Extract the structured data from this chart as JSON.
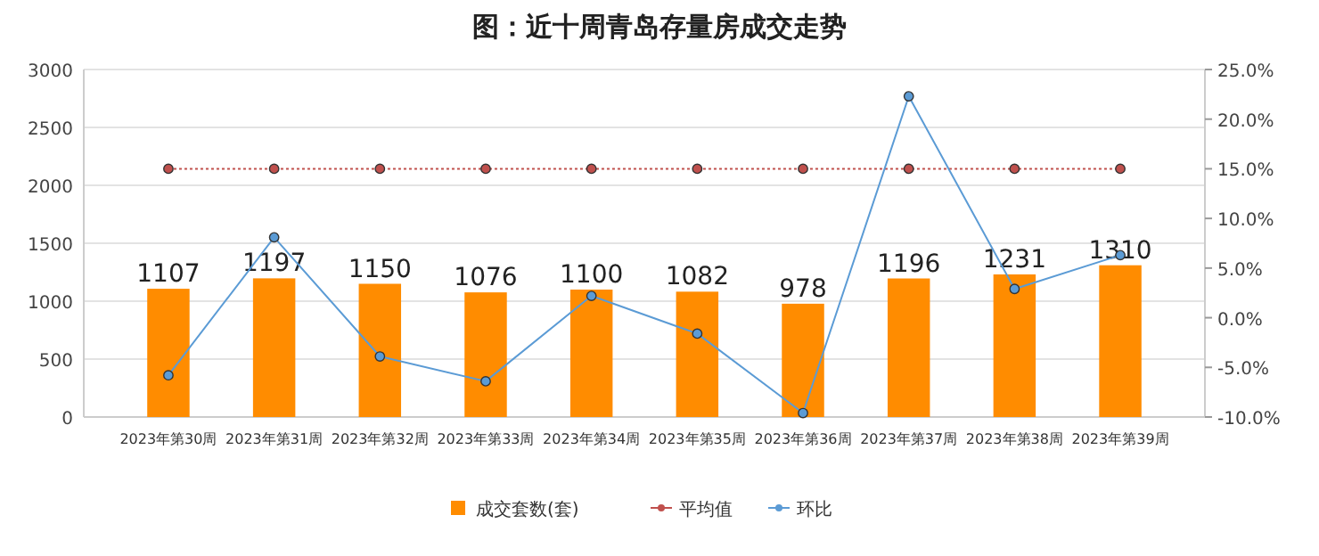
{
  "chart_data": {
    "type": "bar",
    "title": "图：近十周青岛存量房成交走势",
    "categories": [
      "2023年第30周",
      "2023年第31周",
      "2023年第32周",
      "2023年第33周",
      "2023年第34周",
      "2023年第35周",
      "2023年第36周",
      "2023年第37周",
      "2023年第38周",
      "2023年第39周"
    ],
    "series": [
      {
        "name": "成交套数(套)",
        "color": "#ff8c00",
        "values": [
          1107,
          1197,
          1150,
          1076,
          1100,
          1082,
          978,
          1196,
          1231,
          1310
        ],
        "data_labels": true
      },
      {
        "name": "平均值",
        "type": "line",
        "axis": "y2",
        "color": "#c0504d",
        "line_style": "dotted",
        "values": [
          15,
          15,
          15,
          15,
          15,
          15,
          15,
          15,
          15,
          15
        ]
      },
      {
        "name": "环比",
        "type": "line",
        "axis": "y2",
        "color": "#5b9bd5",
        "line_style": "solid",
        "values": [
          -5.8,
          8.1,
          -3.9,
          -6.4,
          2.2,
          -1.6,
          -9.6,
          22.3,
          2.9,
          6.3
        ]
      }
    ],
    "ylim": [
      0,
      3000
    ],
    "yticks": [
      0,
      500,
      1000,
      1500,
      2000,
      2500,
      3000
    ],
    "y2lim": [
      -10,
      25
    ],
    "y2ticks": [
      {
        "value": -10,
        "label": "-10.0%"
      },
      {
        "value": -5,
        "label": "-5.0%"
      },
      {
        "value": 0,
        "label": "0.0%"
      },
      {
        "value": 5,
        "label": "5.0%"
      },
      {
        "value": 10,
        "label": "10.0%"
      },
      {
        "value": 15,
        "label": "15.0%"
      },
      {
        "value": 20,
        "label": "20.0%"
      },
      {
        "value": 25,
        "label": "25.0%"
      }
    ],
    "grid": "y",
    "legend": "bottom",
    "marker": "circle"
  }
}
